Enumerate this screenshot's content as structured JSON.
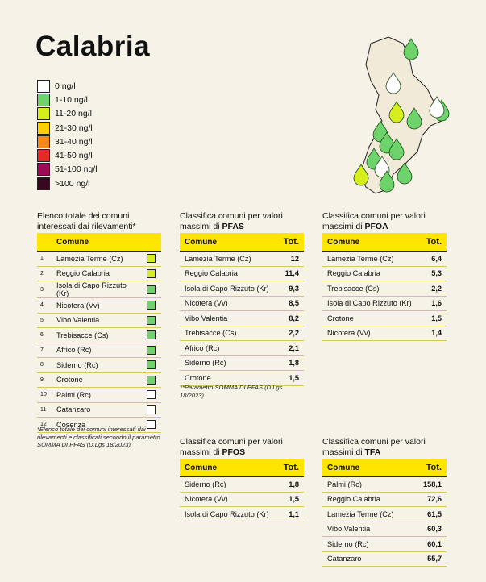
{
  "title": "Calabria",
  "legend": [
    {
      "label": "0 ng/l",
      "color": "#ffffff"
    },
    {
      "label": "1-10 ng/l",
      "color": "#6dd36a"
    },
    {
      "label": "11-20 ng/l",
      "color": "#d5ee1c"
    },
    {
      "label": "21-30 ng/l",
      "color": "#fcd000"
    },
    {
      "label": "31-40 ng/l",
      "color": "#f58a1a"
    },
    {
      "label": "41-50 ng/l",
      "color": "#e52a2a"
    },
    {
      "label": "51-100 ng/l",
      "color": "#9b0b58"
    },
    {
      "label": ">100 ng/l",
      "color": "#36071f"
    }
  ],
  "list_title": "Elenco totale dei comuni interessati dai rilevamenti*",
  "list_header": "Comune",
  "list_rows": [
    {
      "n": "1",
      "name": "Lamezia Terme (Cz)",
      "color": "#d5ee1c"
    },
    {
      "n": "2",
      "name": "Reggio Calabria",
      "color": "#d5ee1c"
    },
    {
      "n": "3",
      "name": "Isola di Capo Rizzuto (Kr)",
      "color": "#6dd36a"
    },
    {
      "n": "4",
      "name": "Nicotera (Vv)",
      "color": "#6dd36a"
    },
    {
      "n": "5",
      "name": "Vibo Valentia",
      "color": "#6dd36a"
    },
    {
      "n": "6",
      "name": "Trebisacce (Cs)",
      "color": "#6dd36a"
    },
    {
      "n": "7",
      "name": "Africo (Rc)",
      "color": "#6dd36a"
    },
    {
      "n": "8",
      "name": "Siderno (Rc)",
      "color": "#6dd36a"
    },
    {
      "n": "9",
      "name": "Crotone",
      "color": "#6dd36a"
    },
    {
      "n": "10",
      "name": "Palmi (Rc)",
      "color": "#ffffff"
    },
    {
      "n": "11",
      "name": "Catanzaro",
      "color": "#ffffff"
    },
    {
      "n": "12",
      "name": "Cosenza",
      "color": "#ffffff"
    }
  ],
  "list_note": "*Elenco totale dei comuni interessati dai rilevamenti e classificati secondo il parametro SOMMA DI PFAS (D.Lgs 18/2023)",
  "pfas": {
    "title_prefix": "Classifica comuni per valori massimi di",
    "title_bold": "PFAS",
    "col1": "Comune",
    "col2": "Tot.",
    "rows": [
      {
        "name": "Lamezia Terme (Cz)",
        "val": "12"
      },
      {
        "name": "Reggio Calabria",
        "val": "11,4"
      },
      {
        "name": "Isola di Capo Rizzuto (Kr)",
        "val": "9,3"
      },
      {
        "name": "Nicotera (Vv)",
        "val": "8,5"
      },
      {
        "name": "Vibo Valentia",
        "val": "8,2"
      },
      {
        "name": "Trebisacce (Cs)",
        "val": "2,2"
      },
      {
        "name": "Africo (Rc)",
        "val": "2,1"
      },
      {
        "name": "Siderno (Rc)",
        "val": "1,8"
      },
      {
        "name": "Crotone",
        "val": "1,5"
      }
    ],
    "note": "**Parametro SOMMA DI PFAS (D.Lgs 18/2023)"
  },
  "pfoa": {
    "title_prefix": "Classifica comuni per valori massimi di",
    "title_bold": "PFOA",
    "col1": "Comune",
    "col2": "Tot.",
    "rows": [
      {
        "name": "Lamezia Terme (Cz)",
        "val": "6,4"
      },
      {
        "name": "Reggio Calabria",
        "val": "5,3"
      },
      {
        "name": "Trebisacce (Cs)",
        "val": "2,2"
      },
      {
        "name": "Isola di Capo Rizzuto (Kr)",
        "val": "1,6"
      },
      {
        "name": "Crotone",
        "val": "1,5"
      },
      {
        "name": "Nicotera (Vv)",
        "val": "1,4"
      }
    ]
  },
  "pfos": {
    "title_prefix": "Classifica comuni per valori massimi di",
    "title_bold": "PFOS",
    "col1": "Comune",
    "col2": "Tot.",
    "rows": [
      {
        "name": "Siderno (Rc)",
        "val": "1,8"
      },
      {
        "name": "Nicotera (Vv)",
        "val": "1,5"
      },
      {
        "name": "Isola di Capo Rizzuto (Kr)",
        "val": "1,1"
      }
    ]
  },
  "tfa": {
    "title_prefix": "Classifica comuni per valori massimi di",
    "title_bold": "TFA",
    "col1": "Comune",
    "col2": "Tot.",
    "rows": [
      {
        "name": "Palmi (Rc)",
        "val": "158,1"
      },
      {
        "name": "Reggio Calabria",
        "val": "72,6"
      },
      {
        "name": "Lamezia Terme (Cz)",
        "val": "61,5"
      },
      {
        "name": "Vibo Valentia",
        "val": "60,3"
      },
      {
        "name": "Siderno (Rc)",
        "val": "60,1"
      },
      {
        "name": "Catanzaro",
        "val": "55,7"
      }
    ]
  },
  "map_drops": [
    "#6dd36a",
    "#ffffff",
    "#d5ee1c",
    "#6dd36a",
    "#6dd36a",
    "#ffffff",
    "#6dd36a",
    "#6dd36a",
    "#6dd36a",
    "#ffffff",
    "#6dd36a",
    "#d5ee1c",
    "#6dd36a",
    "#6dd36a"
  ]
}
